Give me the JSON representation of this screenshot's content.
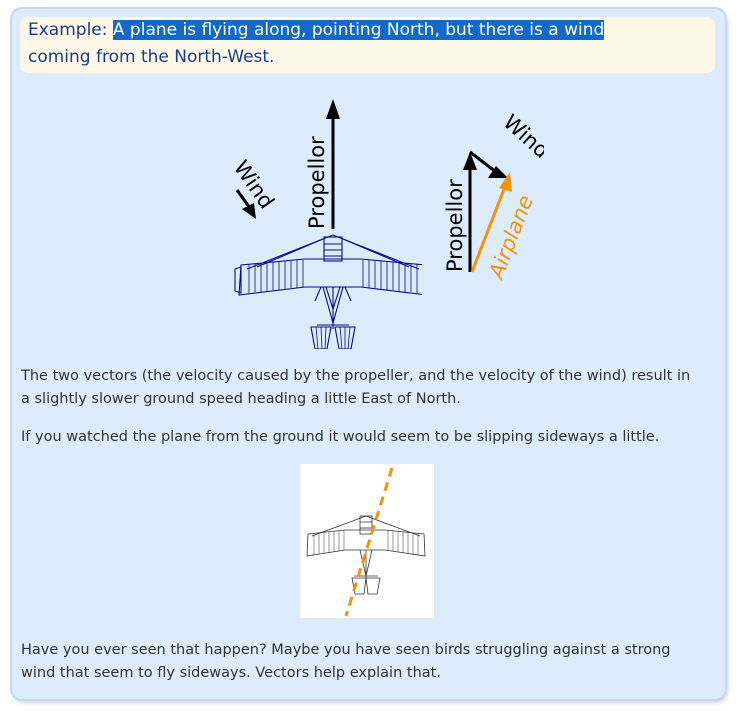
{
  "example": {
    "label": "Example:",
    "highlighted_text": "A plane is flying along, pointing North, but there is a wind",
    "continued_text": "coming from the North-West."
  },
  "diagram": {
    "wind_label": "Wind",
    "propellor_label": "Propellor",
    "airplane_label": "Airplane",
    "colors": {
      "plane": "#0a0a8c",
      "airplane_vector": "#f0930f",
      "arrow": "#000000"
    }
  },
  "paragraphs": {
    "p1_line1": "The two vectors (the velocity caused by the propeller, and the velocity of the wind) result in",
    "p1_line2": "a slightly slower ground speed heading a little East of North.",
    "p2": "If you watched the plane from the ground it would seem to be slipping sideways a little.",
    "p3_line1": "Have you ever seen that happen? Maybe you have seen birds struggling against a strong",
    "p3_line2": "wind that seem to fly sideways. Vectors help explain that."
  }
}
